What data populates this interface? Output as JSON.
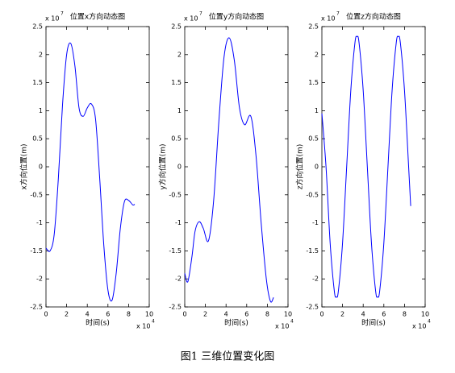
{
  "caption": "图1 三维位置变化图",
  "chart_data": [
    {
      "type": "line",
      "title": "位置x方向动态图",
      "xlabel": "时间(s)",
      "ylabel": "x方向位置(m)",
      "x_scale_label": "x 10",
      "x_scale_exponent": "4",
      "y_scale_label": "x 10",
      "y_scale_exponent": "7",
      "xlim": [
        0,
        10
      ],
      "xticks": [
        0,
        2,
        4,
        6,
        8,
        10
      ],
      "ylim": [
        -2.5,
        2.5
      ],
      "yticks": [
        -2.5,
        -2,
        -1.5,
        -1,
        -0.5,
        0,
        0.5,
        1,
        1.5,
        2,
        2.5
      ],
      "color": "#0000ff",
      "x": [
        0,
        0.4,
        0.8,
        1.2,
        1.6,
        2.0,
        2.4,
        2.8,
        3.2,
        3.6,
        4.0,
        4.4,
        4.8,
        5.2,
        5.6,
        6.0,
        6.4,
        6.8,
        7.2,
        7.6,
        8.0,
        8.4,
        8.6
      ],
      "values": [
        -1.45,
        -1.5,
        -1.2,
        -0.2,
        1.1,
        2.0,
        2.2,
        1.8,
        1.05,
        0.9,
        1.05,
        1.12,
        0.85,
        -0.2,
        -1.4,
        -2.2,
        -2.38,
        -1.9,
        -1.1,
        -0.62,
        -0.6,
        -0.68,
        -0.67
      ]
    },
    {
      "type": "line",
      "title": "位置y方向动态图",
      "xlabel": "时间(s)",
      "ylabel": "y方向位置(m)",
      "x_scale_label": "x 10",
      "x_scale_exponent": "4",
      "y_scale_label": "x 10",
      "y_scale_exponent": "7",
      "xlim": [
        0,
        10
      ],
      "xticks": [
        0,
        2,
        4,
        6,
        8,
        10
      ],
      "ylim": [
        -2.5,
        2.5
      ],
      "yticks": [
        -2.5,
        -2,
        -1.5,
        -1,
        -0.5,
        0,
        0.5,
        1,
        1.5,
        2,
        2.5
      ],
      "color": "#0000ff",
      "x": [
        0,
        0.3,
        0.7,
        1.0,
        1.4,
        1.8,
        2.3,
        2.8,
        3.3,
        3.8,
        4.3,
        4.8,
        5.3,
        5.8,
        6.4,
        6.9,
        7.4,
        7.9,
        8.3,
        8.6
      ],
      "values": [
        -1.9,
        -2.05,
        -1.6,
        -1.15,
        -0.98,
        -1.1,
        -1.32,
        -0.6,
        0.8,
        1.95,
        2.3,
        1.9,
        1.05,
        0.75,
        0.9,
        0.2,
        -1.0,
        -2.0,
        -2.4,
        -2.33
      ]
    },
    {
      "type": "line",
      "title": "位置z方向动态图",
      "xlabel": "时间(s)",
      "ylabel": "z方向位置(m)",
      "x_scale_label": "x 10",
      "x_scale_exponent": "4",
      "y_scale_label": "x 10",
      "y_scale_exponent": "7",
      "xlim": [
        0,
        10
      ],
      "xticks": [
        0,
        2,
        4,
        6,
        8,
        10
      ],
      "ylim": [
        -2.5,
        2.5
      ],
      "yticks": [
        -2.5,
        -2,
        -1.5,
        -1,
        -0.5,
        0,
        0.5,
        1,
        1.5,
        2,
        2.5
      ],
      "color": "#0000ff",
      "x": [
        0,
        0.4,
        0.8,
        1.2,
        1.4,
        1.6,
        2.0,
        2.4,
        2.8,
        3.2,
        3.4,
        3.6,
        4.0,
        4.4,
        4.8,
        5.2,
        5.4,
        5.6,
        6.0,
        6.4,
        6.8,
        7.2,
        7.4,
        7.6,
        8.0,
        8.4,
        8.6
      ],
      "values": [
        0.95,
        0,
        -1.36,
        -2.21,
        -2.32,
        -2.21,
        -1.36,
        0,
        1.36,
        2.21,
        2.32,
        2.21,
        1.36,
        0,
        -1.36,
        -2.21,
        -2.32,
        -2.21,
        -1.36,
        0,
        1.36,
        2.21,
        2.32,
        2.21,
        1.36,
        0,
        -0.7
      ]
    }
  ]
}
